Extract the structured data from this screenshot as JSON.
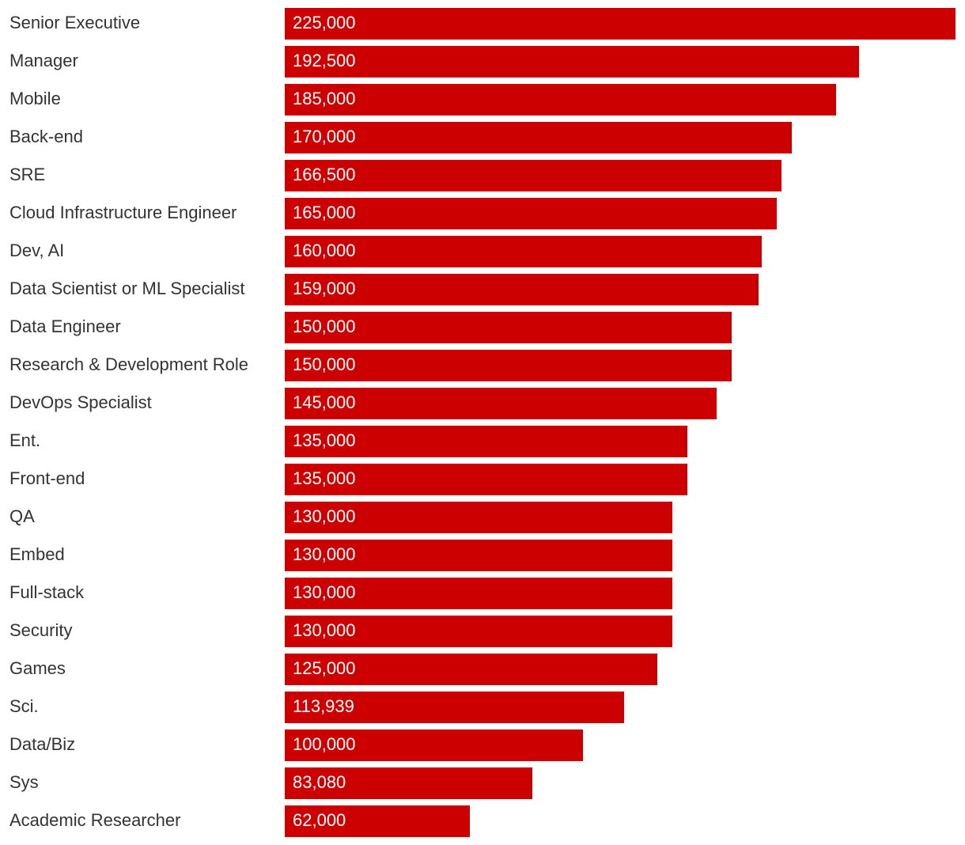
{
  "chart_data": {
    "type": "bar",
    "orientation": "horizontal",
    "bar_color": "#cc0000",
    "label_color": "#333333",
    "value_text_color": "#ffffff",
    "grid": false,
    "legend": false,
    "xlim": [
      0,
      225000
    ],
    "categories": [
      "Senior Executive",
      "Manager",
      "Mobile",
      "Back-end",
      "SRE",
      "Cloud Infrastructure Engineer",
      "Dev, AI",
      "Data Scientist or ML Specialist",
      "Data Engineer",
      "Research & Development Role",
      "DevOps Specialist",
      "Ent.",
      "Front-end",
      "QA",
      "Embed",
      "Full-stack",
      "Security",
      "Games",
      "Sci.",
      "Data/Biz",
      "Sys",
      "Academic Researcher"
    ],
    "values": [
      225000,
      192500,
      185000,
      170000,
      166500,
      165000,
      160000,
      159000,
      150000,
      150000,
      145000,
      135000,
      135000,
      130000,
      130000,
      130000,
      130000,
      125000,
      113939,
      100000,
      83080,
      62000
    ],
    "value_labels": [
      "225,000",
      "192,500",
      "185,000",
      "170,000",
      "166,500",
      "165,000",
      "160,000",
      "159,000",
      "150,000",
      "150,000",
      "145,000",
      "135,000",
      "135,000",
      "130,000",
      "130,000",
      "130,000",
      "130,000",
      "125,000",
      "113,939",
      "100,000",
      "83,080",
      "62,000"
    ]
  }
}
